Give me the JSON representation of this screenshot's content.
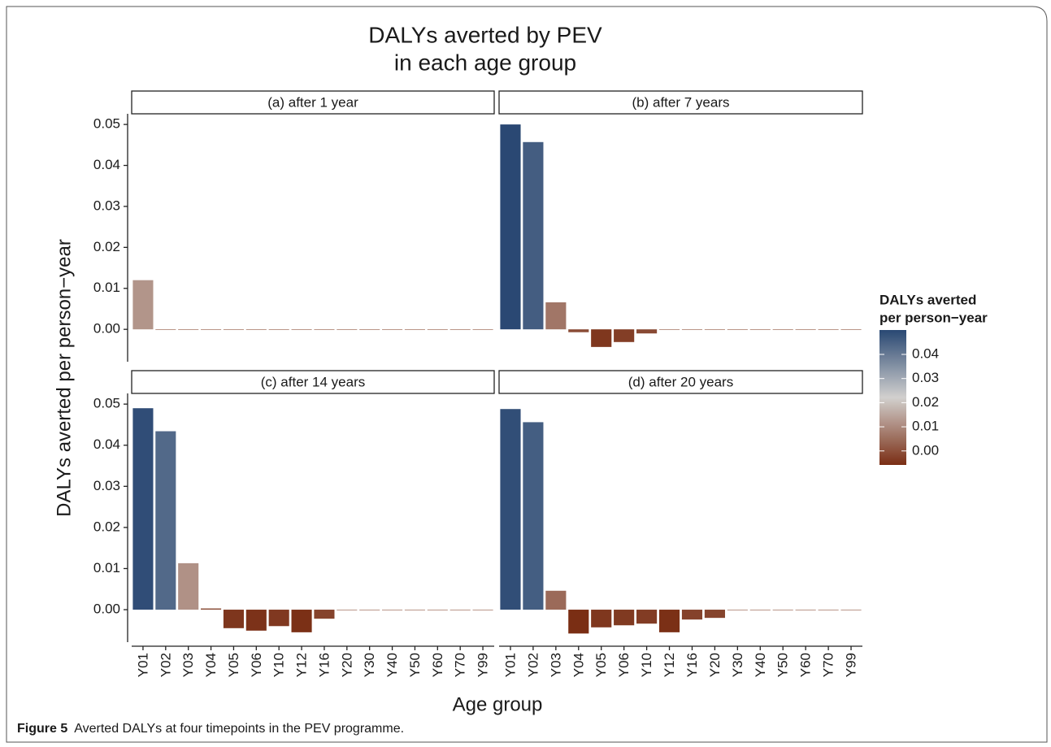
{
  "chart_data": {
    "type": "bar",
    "title": [
      "DALYs averted by PEV",
      "in each age group"
    ],
    "x_label": "Age group",
    "y_label": "DALYs averted per person−year",
    "categories": [
      "Y01",
      "Y02",
      "Y03",
      "Y04",
      "Y05",
      "Y06",
      "Y10",
      "Y12",
      "Y16",
      "Y20",
      "Y30",
      "Y40",
      "Y50",
      "Y60",
      "Y70",
      "Y99"
    ],
    "ylim": [
      -0.0079,
      0.0526
    ],
    "yticks": [
      {
        "value": 0,
        "label": "0.00"
      },
      0.01,
      0.02,
      0.03,
      0.04,
      0.05
    ],
    "legend_title": [
      "DALYs averted",
      "per person−year"
    ],
    "color_scale": {
      "low": "#7a2e14",
      "mid": "#d2d0ce",
      "high": "#294873",
      "limits": [
        -0.0058,
        0.0501
      ],
      "ticks": [
        {
          "value": 0,
          "label": "0.00"
        },
        0.01,
        0.02,
        0.03,
        0.04
      ]
    },
    "panels": [
      {
        "title": "(a) after 1 year",
        "values": [
          0.012,
          0,
          0,
          0,
          0,
          0,
          0,
          0,
          0,
          0,
          0,
          0,
          0,
          0,
          0,
          0
        ]
      },
      {
        "title": "(b) after 7 years",
        "values": [
          0.05,
          0.0457,
          0.0066,
          -0.0007,
          -0.0043,
          -0.0031,
          -0.001,
          0,
          0,
          0,
          0,
          0,
          0,
          0,
          0,
          0
        ]
      },
      {
        "title": "(c) after 14 years",
        "values": [
          0.049,
          0.0434,
          0.0113,
          0.0003,
          -0.0045,
          -0.0051,
          -0.004,
          -0.0055,
          -0.0022,
          0,
          0,
          0,
          0,
          0,
          0,
          0
        ]
      },
      {
        "title": "(d) after 20 years",
        "values": [
          0.0488,
          0.0456,
          0.0046,
          -0.0058,
          -0.0043,
          -0.0038,
          -0.0034,
          -0.0055,
          -0.0024,
          -0.002,
          0,
          0,
          0,
          0,
          0,
          0
        ]
      }
    ]
  },
  "caption": {
    "label": "Figure 5",
    "text": "Averted DALYs at four timepoints in the PEV programme."
  }
}
